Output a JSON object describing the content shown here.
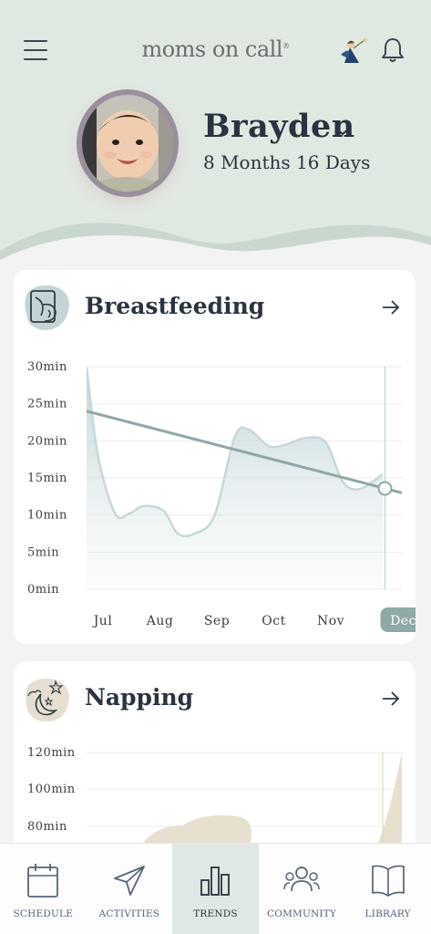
{
  "header": {
    "brand": "moms on call",
    "brand_mark": "®"
  },
  "child": {
    "name": "Brayden",
    "age": "8 Months 16 Days"
  },
  "colors": {
    "header_bg": "#dfe8e1",
    "accent": "#8fa8a8",
    "active_tab_bg": "#e0e8e4",
    "text": "#2a3340"
  },
  "cards": [
    {
      "title": "Breastfeeding",
      "icon": "breastfeeding-icon"
    },
    {
      "title": "Napping",
      "icon": "moon-stars-icon"
    }
  ],
  "chart_data": [
    {
      "type": "area",
      "y_unit": "min",
      "yticks": [
        "30min",
        "25min",
        "20min",
        "15min",
        "10min",
        "5min",
        "0min"
      ],
      "ylim": [
        0,
        30
      ],
      "categories": [
        "Jul",
        "Aug",
        "Sep",
        "Oct",
        "Nov",
        "Dec"
      ],
      "selected_category": "Dec",
      "x": [
        0,
        0.2,
        0.5,
        0.75,
        1.0,
        1.35,
        1.6,
        1.9,
        2.25,
        2.6,
        2.85,
        3.2,
        3.5,
        3.85,
        4.2,
        4.5,
        4.8,
        5.2
      ],
      "series": [
        {
          "values": [
            30,
            18,
            10.2,
            10.2,
            11.2,
            10.6,
            7.5,
            7.5,
            10,
            20.5,
            21.5,
            19.3,
            19.5,
            20.4,
            19.8,
            14.5,
            13.5,
            15.5
          ]
        }
      ],
      "trend": {
        "start": 24,
        "end": 13
      },
      "grid": true
    },
    {
      "type": "area",
      "y_unit": "min",
      "yticks": [
        "120min",
        "100min",
        "80min"
      ],
      "ylim": [
        0,
        120
      ],
      "grid": true
    }
  ],
  "tabs": [
    {
      "label": "SCHEDULE",
      "icon": "calendar-icon"
    },
    {
      "label": "ACTIVITIES",
      "icon": "paper-plane-icon"
    },
    {
      "label": "TRENDS",
      "icon": "bar-chart-icon"
    },
    {
      "label": "COMMUNITY",
      "icon": "community-icon"
    },
    {
      "label": "LIBRARY",
      "icon": "book-icon"
    }
  ]
}
